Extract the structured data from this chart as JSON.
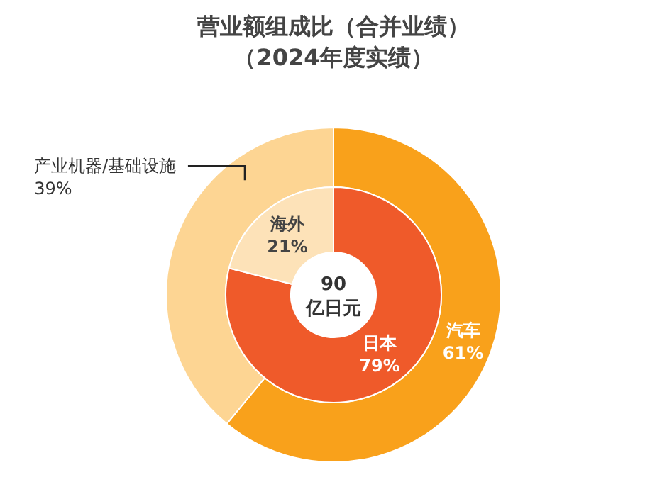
{
  "chart_data": [
    {
      "type": "donut",
      "title": "营业额组成比（合并业绩）",
      "subtitle": "（2024年度实绩）",
      "categories": [
        "汽车",
        "产业机器/基础设施"
      ],
      "values": [
        61,
        39
      ],
      "colors": [
        "#f9a11b",
        "#fdd593"
      ],
      "value_labels": [
        "61%",
        "39%"
      ]
    },
    {
      "type": "donut",
      "categories": [
        "日本",
        "海外"
      ],
      "values": [
        79,
        21
      ],
      "colors": [
        "#ef5a2a",
        "#fde2b8"
      ],
      "value_labels": [
        "79%",
        "21%"
      ],
      "annotations": [
        "90",
        "亿日元"
      ]
    }
  ]
}
